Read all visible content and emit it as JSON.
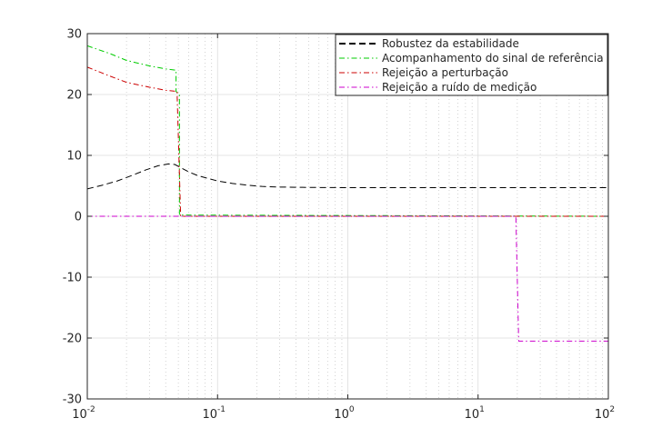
{
  "chart_data": {
    "type": "line",
    "title": "",
    "xlabel": "",
    "ylabel": "",
    "x_scale": "log",
    "xlim": [
      0.01,
      100
    ],
    "ylim": [
      -30,
      30
    ],
    "grid": true,
    "legend_position": "top-right",
    "x_ticks": [
      {
        "value": 0.01,
        "base": "10",
        "exp": "-2"
      },
      {
        "value": 0.1,
        "base": "10",
        "exp": "-1"
      },
      {
        "value": 1,
        "base": "10",
        "exp": "0"
      },
      {
        "value": 10,
        "base": "10",
        "exp": "1"
      },
      {
        "value": 100,
        "base": "10",
        "exp": "2"
      }
    ],
    "y_ticks": [
      {
        "value": 30,
        "label": "30"
      },
      {
        "value": 20,
        "label": "20"
      },
      {
        "value": 10,
        "label": "10"
      },
      {
        "value": 0,
        "label": "0"
      },
      {
        "value": -10,
        "label": "-10"
      },
      {
        "value": -20,
        "label": "-20"
      },
      {
        "value": -30,
        "label": "-30"
      }
    ],
    "series": [
      {
        "name": "Robustez da estabilidade",
        "color": "#000000",
        "dash": "dashed",
        "x": [
          0.01,
          0.013,
          0.017,
          0.022,
          0.028,
          0.035,
          0.042,
          0.047,
          0.052,
          0.06,
          0.07,
          0.085,
          0.1,
          0.13,
          0.17,
          0.22,
          0.3,
          0.45,
          0.7,
          1,
          2,
          5,
          10,
          30,
          100
        ],
        "y": [
          4.5,
          5.1,
          5.8,
          6.7,
          7.6,
          8.3,
          8.6,
          8.5,
          8.0,
          7.3,
          6.7,
          6.2,
          5.8,
          5.4,
          5.1,
          4.9,
          4.8,
          4.75,
          4.72,
          4.7,
          4.7,
          4.7,
          4.7,
          4.7,
          4.7
        ]
      },
      {
        "name": "Acompanhamento do sinal de referência",
        "color": "#00cc00",
        "dash": "dashdot",
        "x": [
          0.01,
          0.015,
          0.02,
          0.03,
          0.04,
          0.048,
          0.048,
          0.051,
          0.051,
          100
        ],
        "y": [
          28.0,
          26.7,
          25.6,
          24.7,
          24.2,
          24.0,
          20.5,
          20.0,
          0.2,
          0
        ]
      },
      {
        "name": "Rejeição a perturbação",
        "color": "#cc0000",
        "dash": "dashdot",
        "x": [
          0.01,
          0.015,
          0.02,
          0.03,
          0.04,
          0.049,
          0.049,
          0.052,
          0.052,
          100
        ],
        "y": [
          24.5,
          23.0,
          22.0,
          21.2,
          20.7,
          20.5,
          19.5,
          0.5,
          0,
          0
        ]
      },
      {
        "name": "Rejeição a ruído de medição",
        "color": "#cc00cc",
        "dash": "dashdot",
        "x": [
          0.01,
          19.5,
          20.5,
          100
        ],
        "y": [
          0,
          0,
          -20.5,
          -20.5
        ]
      }
    ]
  }
}
